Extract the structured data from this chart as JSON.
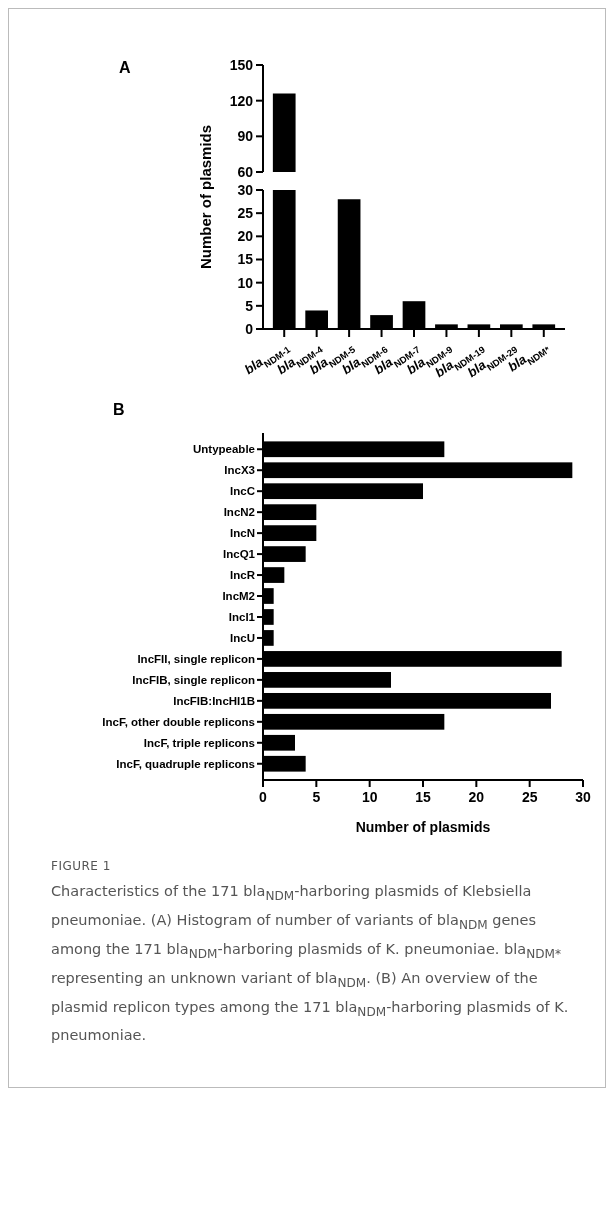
{
  "chart_data": [
    {
      "type": "bar",
      "categories": [
        null
      ],
      "values": [
        126
      ],
      "color": "#000000",
      "ylim": [
        60,
        150
      ],
      "yticks": [
        60,
        90,
        120,
        150
      ],
      "tick_labels": "y"
    },
    {
      "type": "bar",
      "ylabel": "Number of plasmids",
      "categories": [
        "bla$_{NDM-1}$",
        "bla$_{NDM-4}$",
        "bla$_{NDM-5}$",
        "bla$_{NDM-6}$",
        "bla$_{NDM-7}$",
        "bla$_{NDM-9}$",
        "bla$_{NDM-19}$",
        "bla$_{NDM-29}$",
        "bla$_{NDM*}$"
      ],
      "values": [
        null,
        4,
        28,
        3,
        6,
        1,
        1,
        1,
        1
      ],
      "color": "#000000",
      "ylim": [
        0,
        30
      ],
      "yticks": [
        0,
        5,
        10,
        15,
        20,
        25,
        30
      ]
    },
    {
      "type": "bar",
      "orientation": "horizontal",
      "title": "B",
      "xlabel": "Number of plasmids",
      "categories": [
        "Untypeable",
        "IncX3",
        "IncC",
        "IncN2",
        "IncN",
        "IncQ1",
        "IncR",
        "IncM2",
        "IncI1",
        "IncU",
        "IncFII, single replicon",
        "IncFIB, single replicon",
        "IncFIB:IncHI1B",
        "IncF, other double replicons",
        "IncF, triple replicons",
        "IncF, quadruple replicons"
      ],
      "values": [
        17,
        29,
        15,
        5,
        5,
        4,
        2,
        1,
        1,
        1,
        28,
        12,
        27,
        17,
        3,
        4
      ],
      "color": "#000000",
      "xlim": [
        0,
        30
      ],
      "xticks": [
        0,
        5,
        10,
        15,
        20,
        25,
        30
      ],
      "annotations": [
        "A",
        "FIGURE 1",
        "Characteristics of the 171 bla$_{NDM}$-harboring plasmids of Klebsiella pneumoniae. (A) Histogram of number of variants of bla$_{NDM}$ genes among the 171 bla$_{NDM}$-harboring plasmids of K. pneumoniae. bla$_{NDM*}$ representing an unknown variant of bla$_{NDM}$. (B) An overview of the plasmid replicon types among the 171 bla$_{NDM}$-harboring plasmids of K. pneumoniae."
      ]
    }
  ]
}
